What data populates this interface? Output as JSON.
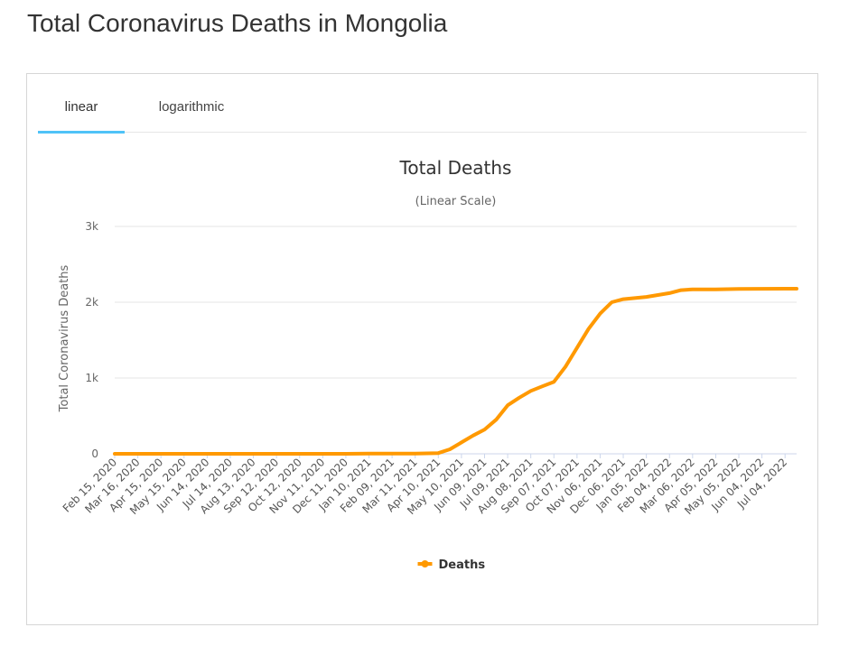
{
  "page": {
    "title": "Total Coronavirus Deaths in Mongolia"
  },
  "tabs": [
    {
      "label": "linear",
      "active": true
    },
    {
      "label": "logarithmic",
      "active": false
    }
  ],
  "colors": {
    "series": "#FF9900",
    "active_tab": "#4FC3F7",
    "grid": "#E6E6E6"
  },
  "chart_data": {
    "type": "line",
    "title": "Total Deaths",
    "subtitle": "(Linear Scale)",
    "ylabel": "Total Coronavirus Deaths",
    "xlabel": "",
    "ylim": [
      0,
      3000
    ],
    "y_ticks": [
      {
        "value": 0,
        "label": "0"
      },
      {
        "value": 1000,
        "label": "1k"
      },
      {
        "value": 2000,
        "label": "2k"
      },
      {
        "value": 3000,
        "label": "3k"
      }
    ],
    "x_tick_labels": [
      "Feb 15, 2020",
      "Mar 16, 2020",
      "Apr 15, 2020",
      "May 15, 2020",
      "Jun 14, 2020",
      "Jul 14, 2020",
      "Aug 13, 2020",
      "Sep 12, 2020",
      "Oct 12, 2020",
      "Nov 11, 2020",
      "Dec 11, 2020",
      "Jan 10, 2021",
      "Feb 09, 2021",
      "Mar 11, 2021",
      "Apr 10, 2021",
      "May 10, 2021",
      "Jun 09, 2021",
      "Jul 09, 2021",
      "Aug 08, 2021",
      "Sep 07, 2021",
      "Oct 07, 2021",
      "Nov 06, 2021",
      "Dec 06, 2021",
      "Jan 05, 2022",
      "Feb 04, 2022",
      "Mar 06, 2022",
      "Apr 05, 2022",
      "May 05, 2022",
      "Jun 04, 2022",
      "Jul 04, 2022"
    ],
    "legend": {
      "position": "bottom-center"
    },
    "grid": true,
    "series": [
      {
        "name": "Deaths",
        "color": "#FF9900",
        "points": [
          {
            "x": "Feb 15, 2020",
            "y": 0
          },
          {
            "x": "Dec 11, 2020",
            "y": 0
          },
          {
            "x": "Jan 10, 2021",
            "y": 2
          },
          {
            "x": "Mar 11, 2021",
            "y": 3
          },
          {
            "x": "Apr 10, 2021",
            "y": 10
          },
          {
            "x": "Apr 25, 2021",
            "y": 60
          },
          {
            "x": "May 10, 2021",
            "y": 150
          },
          {
            "x": "May 25, 2021",
            "y": 240
          },
          {
            "x": "Jun 09, 2021",
            "y": 320
          },
          {
            "x": "Jun 24, 2021",
            "y": 450
          },
          {
            "x": "Jul 09, 2021",
            "y": 640
          },
          {
            "x": "Jul 24, 2021",
            "y": 740
          },
          {
            "x": "Aug 08, 2021",
            "y": 830
          },
          {
            "x": "Aug 23, 2021",
            "y": 890
          },
          {
            "x": "Sep 07, 2021",
            "y": 950
          },
          {
            "x": "Sep 22, 2021",
            "y": 1150
          },
          {
            "x": "Oct 07, 2021",
            "y": 1400
          },
          {
            "x": "Oct 22, 2021",
            "y": 1650
          },
          {
            "x": "Nov 06, 2021",
            "y": 1850
          },
          {
            "x": "Nov 21, 2021",
            "y": 2000
          },
          {
            "x": "Dec 06, 2021",
            "y": 2040
          },
          {
            "x": "Jan 05, 2022",
            "y": 2070
          },
          {
            "x": "Feb 04, 2022",
            "y": 2120
          },
          {
            "x": "Feb 19, 2022",
            "y": 2160
          },
          {
            "x": "Mar 06, 2022",
            "y": 2170
          },
          {
            "x": "Apr 05, 2022",
            "y": 2170
          },
          {
            "x": "May 05, 2022",
            "y": 2175
          },
          {
            "x": "Jun 04, 2022",
            "y": 2177
          },
          {
            "x": "Jul 04, 2022",
            "y": 2178
          },
          {
            "x": "Jul 19, 2022",
            "y": 2179
          }
        ]
      }
    ]
  }
}
